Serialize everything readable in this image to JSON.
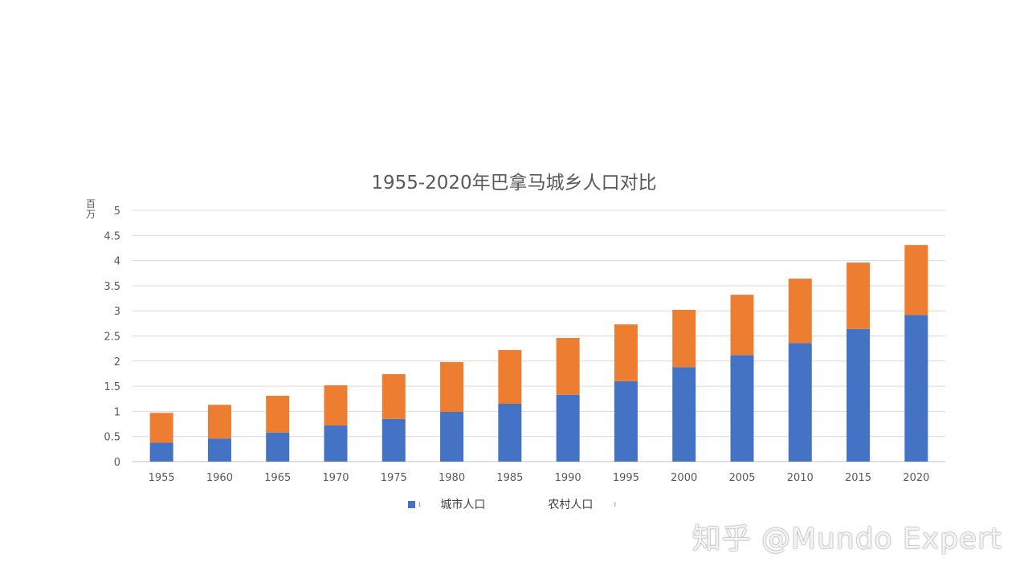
{
  "chart_data": {
    "type": "bar",
    "stacked": true,
    "title": "1955-2020年巴拿马城乡人口对比",
    "ylabel": "百万",
    "xlabel": "",
    "ylim": [
      0,
      5
    ],
    "yticks": [
      "0",
      "0.5",
      "1",
      "1.5",
      "2",
      "2.5",
      "3",
      "3.5",
      "4",
      "4.5",
      "5"
    ],
    "grid": true,
    "legend": "bottom",
    "categories": [
      "1955",
      "1960",
      "1965",
      "1970",
      "1975",
      "1980",
      "1985",
      "1990",
      "1995",
      "2000",
      "2005",
      "2010",
      "2015",
      "2020"
    ],
    "series": [
      {
        "name": "城市人口",
        "color": "#4472C4",
        "values": [
          0.38,
          0.46,
          0.58,
          0.72,
          0.85,
          0.99,
          1.15,
          1.33,
          1.6,
          1.88,
          2.12,
          2.36,
          2.64,
          2.92
        ]
      },
      {
        "name": "农村人口",
        "color": "#ED7D31",
        "values": [
          0.59,
          0.67,
          0.73,
          0.8,
          0.89,
          0.99,
          1.07,
          1.13,
          1.13,
          1.14,
          1.2,
          1.28,
          1.32,
          1.39
        ]
      }
    ]
  },
  "watermark": "知乎 @Mundo Expert"
}
